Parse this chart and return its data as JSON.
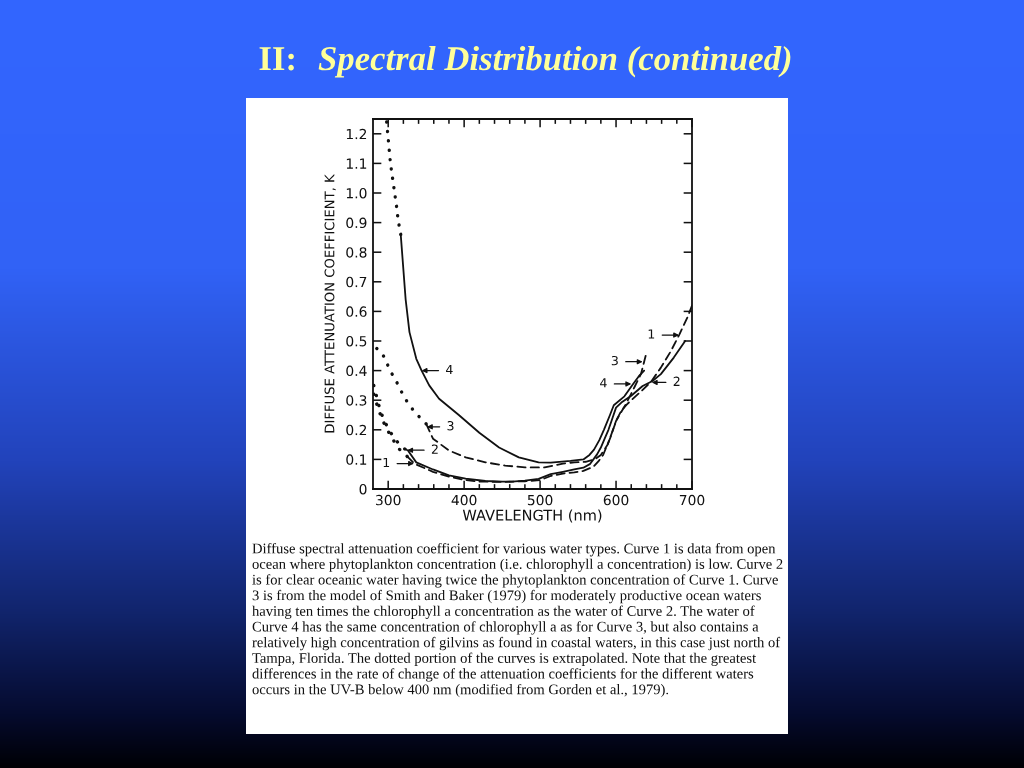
{
  "chart_data": {
    "type": "line",
    "title": "II:  Spectral Distribution (continued)",
    "xlabel": "WAVELENGTH (nm)",
    "ylabel": "DIFFUSE ATTENUATION COEFFICIENT, K",
    "xlim": [
      280,
      700
    ],
    "ylim": [
      0,
      1.25
    ],
    "xticks": [
      300,
      {
        "value": 320,
        "label": null
      },
      {
        "value": 340,
        "label": null
      },
      {
        "value": 360,
        "label": null
      },
      {
        "value": 380,
        "label": null
      },
      400,
      {
        "value": 420,
        "label": null
      },
      {
        "value": 440,
        "label": null
      },
      {
        "value": 460,
        "label": null
      },
      {
        "value": 480,
        "label": null
      },
      500,
      {
        "value": 520,
        "label": null
      },
      {
        "value": 540,
        "label": null
      },
      {
        "value": 560,
        "label": null
      },
      {
        "value": 580,
        "label": null
      },
      600,
      {
        "value": 620,
        "label": null
      },
      {
        "value": 640,
        "label": null
      },
      {
        "value": 660,
        "label": null
      },
      {
        "value": 680,
        "label": null
      },
      700
    ],
    "yticks": [
      0,
      0.1,
      0.2,
      0.3,
      0.4,
      0.5,
      0.6,
      0.7,
      0.8,
      0.9,
      {
        "value": 1.0,
        "label": "1.0"
      },
      1.1,
      1.2
    ],
    "series": [
      {
        "color": "#111111",
        "line_style": "dotted",
        "x": [
          281,
          287,
          293,
          300,
          308,
          316,
          325
        ],
        "values": [
          0.32,
          0.27,
          0.23,
          0.195,
          0.16,
          0.13,
          0.11
        ]
      },
      {
        "color": "#111111",
        "line_style": "dashed",
        "x": [
          325,
          335,
          359,
          380,
          402,
          420,
          450,
          480,
          500,
          514,
          530,
          545,
          557,
          570,
          577,
          583,
          587,
          592,
          596,
          601,
          607,
          614,
          620,
          633,
          646,
          659,
          672,
          683,
          694,
          700
        ],
        "values": [
          0.11,
          0.085,
          0.058,
          0.042,
          0.03,
          0.025,
          0.024,
          0.026,
          0.03,
          0.044,
          0.052,
          0.056,
          0.061,
          0.075,
          0.094,
          0.115,
          0.14,
          0.17,
          0.2,
          0.235,
          0.265,
          0.285,
          0.3,
          0.33,
          0.362,
          0.41,
          0.465,
          0.52,
          0.58,
          0.62
        ]
      },
      {
        "color": "#111111",
        "line_style": "dotted",
        "x": [
          281,
          285,
          289,
          294,
          300,
          307,
          315,
          322
        ],
        "values": [
          0.35,
          0.31,
          0.27,
          0.235,
          0.205,
          0.175,
          0.15,
          0.135
        ]
      },
      {
        "color": "#111111",
        "line_style": "solid",
        "x": [
          322,
          326,
          337,
          359,
          380,
          402,
          428,
          450,
          463,
          480,
          498,
          514,
          530,
          545,
          557,
          566,
          575,
          580,
          585,
          590,
          594,
          600,
          607,
          620,
          635,
          648,
          659,
          676,
          691
        ],
        "values": [
          0.135,
          0.13,
          0.09,
          0.066,
          0.046,
          0.035,
          0.027,
          0.025,
          0.025,
          0.028,
          0.034,
          0.05,
          0.058,
          0.066,
          0.072,
          0.085,
          0.117,
          0.14,
          0.17,
          0.2,
          0.23,
          0.275,
          0.292,
          0.315,
          0.348,
          0.365,
          0.388,
          0.444,
          0.5
        ]
      },
      {
        "color": "#111111",
        "line_style": "dotted",
        "x": [
          285,
          296,
          301,
          311,
          320,
          328,
          339,
          350
        ],
        "values": [
          0.475,
          0.443,
          0.407,
          0.362,
          0.316,
          0.282,
          0.249,
          0.22
        ]
      },
      {
        "color": "#111111",
        "line_style": "dashed",
        "x": [
          350,
          359,
          380,
          402,
          428,
          454,
          480,
          506,
          520,
          530,
          545,
          560,
          572,
          580,
          589,
          596,
          600,
          613,
          624,
          633,
          639
        ],
        "values": [
          0.22,
          0.17,
          0.13,
          0.107,
          0.09,
          0.079,
          0.073,
          0.073,
          0.08,
          0.086,
          0.09,
          0.092,
          0.1,
          0.115,
          0.15,
          0.2,
          0.23,
          0.287,
          0.343,
          0.39,
          0.45
        ]
      },
      {
        "color": "#111111",
        "line_style": "dotted",
        "x": [
          298,
          303,
          308.5,
          311,
          313,
          316.5
        ],
        "values": [
          1.24,
          1.1,
          1.0,
          0.955,
          0.91,
          0.86
        ]
      },
      {
        "color": "#111111",
        "line_style": "solid",
        "x": [
          316.5,
          323,
          328,
          337,
          344,
          354,
          367,
          393,
          420,
          446,
          472,
          498,
          514,
          540,
          557,
          565,
          571,
          578,
          584,
          592,
          597,
          611,
          622,
          630,
          637
        ],
        "values": [
          0.86,
          0.64,
          0.53,
          0.44,
          0.4,
          0.35,
          0.305,
          0.25,
          0.19,
          0.14,
          0.107,
          0.09,
          0.089,
          0.095,
          0.1,
          0.115,
          0.133,
          0.165,
          0.2,
          0.25,
          0.283,
          0.313,
          0.353,
          0.381,
          0.4
        ]
      }
    ],
    "annotations": [
      {
        "text": "1",
        "x": 334,
        "y": 0.086
      },
      {
        "text": "2",
        "x": 325,
        "y": 0.131
      },
      {
        "text": "3",
        "x": 351,
        "y": 0.21
      },
      {
        "text": "4",
        "x": 344,
        "y": 0.4
      },
      {
        "text": "1",
        "x": 683,
        "y": 0.52
      },
      {
        "text": "2",
        "x": 647,
        "y": 0.36
      },
      {
        "text": "3",
        "x": 635,
        "y": 0.43
      },
      {
        "text": "4",
        "x": 620,
        "y": 0.355
      },
      "Diffuse spectral attenuation coefficient for various water types. Curve 1 is data from open ocean where phytoplankton concentration (i.e. chlorophyll a concentration) is low. Curve 2 is for clear oceanic water having twice the phytoplankton concentration of Curve 1. Curve 3 is from the model of Smith and Baker (1979) for moderately productive ocean waters having ten times the chlorophyll a concentration as the water of Curve 2. The water of Curve 4 has the same concentration of chlorophyll a as for Curve 3, but also contains a relatively high concentration of gilvins as found in coastal waters, in this case just north of Tampa, Florida. The dotted portion of the curves is extrapolated. Note that the greatest differences in the rate of change of the attenuation coefficients for the different waters occurs in the UV-B below 400 nm (modified from Gorden et al., 1979)."
    ]
  }
}
